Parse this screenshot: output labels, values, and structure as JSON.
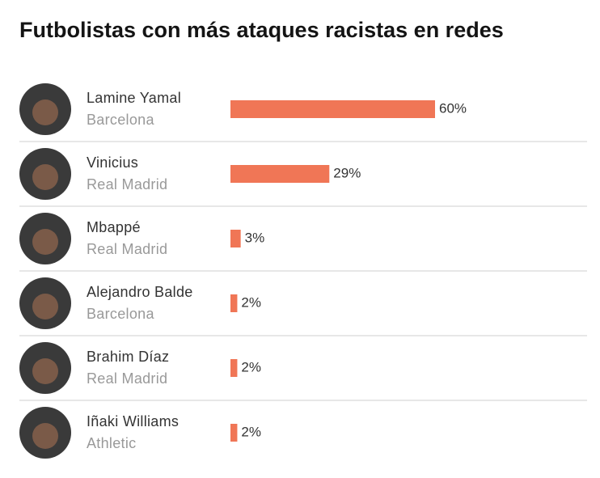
{
  "chart_data": {
    "type": "bar",
    "title": "Futbolistas con más ataques racistas en redes",
    "categories": [
      "Lamine Yamal",
      "Vinicius",
      "Mbappé",
      "Alejandro Balde",
      "Brahim Díaz",
      "Iñaki Williams"
    ],
    "clubs": [
      "Barcelona",
      "Real Madrid",
      "Real Madrid",
      "Barcelona",
      "Real Madrid",
      "Athletic"
    ],
    "values": [
      60,
      29,
      3,
      2,
      2,
      2
    ],
    "value_labels": [
      "60%",
      "29%",
      "3%",
      "2%",
      "2%",
      "2%"
    ],
    "color": "#f07656"
  }
}
